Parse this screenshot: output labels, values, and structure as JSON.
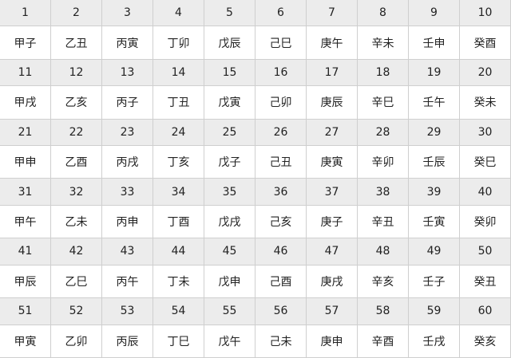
{
  "colors": {
    "number_row_bg": "#ececec",
    "name_row_bg": "#ffffff",
    "border": "#cfcfcf"
  },
  "rows": [
    {
      "numbers": [
        "1",
        "2",
        "3",
        "4",
        "5",
        "6",
        "7",
        "8",
        "9",
        "10"
      ],
      "names": [
        "甲子",
        "乙丑",
        "丙寅",
        "丁卯",
        "戊辰",
        "己巳",
        "庚午",
        "辛未",
        "壬申",
        "癸酉"
      ]
    },
    {
      "numbers": [
        "11",
        "12",
        "13",
        "14",
        "15",
        "16",
        "17",
        "18",
        "19",
        "20"
      ],
      "names": [
        "甲戌",
        "乙亥",
        "丙子",
        "丁丑",
        "戊寅",
        "己卯",
        "庚辰",
        "辛巳",
        "壬午",
        "癸未"
      ]
    },
    {
      "numbers": [
        "21",
        "22",
        "23",
        "24",
        "25",
        "26",
        "27",
        "28",
        "29",
        "30"
      ],
      "names": [
        "甲申",
        "乙酉",
        "丙戌",
        "丁亥",
        "戊子",
        "己丑",
        "庚寅",
        "辛卯",
        "壬辰",
        "癸巳"
      ]
    },
    {
      "numbers": [
        "31",
        "32",
        "33",
        "34",
        "35",
        "36",
        "37",
        "38",
        "39",
        "40"
      ],
      "names": [
        "甲午",
        "乙未",
        "丙申",
        "丁酉",
        "戊戌",
        "己亥",
        "庚子",
        "辛丑",
        "壬寅",
        "癸卯"
      ]
    },
    {
      "numbers": [
        "41",
        "42",
        "43",
        "44",
        "45",
        "46",
        "47",
        "48",
        "49",
        "50"
      ],
      "names": [
        "甲辰",
        "乙巳",
        "丙午",
        "丁未",
        "戊申",
        "己酉",
        "庚戌",
        "辛亥",
        "壬子",
        "癸丑"
      ]
    },
    {
      "numbers": [
        "51",
        "52",
        "53",
        "54",
        "55",
        "56",
        "57",
        "58",
        "59",
        "60"
      ],
      "names": [
        "甲寅",
        "乙卯",
        "丙辰",
        "丁巳",
        "戊午",
        "己未",
        "庚申",
        "辛酉",
        "壬戌",
        "癸亥"
      ]
    }
  ]
}
